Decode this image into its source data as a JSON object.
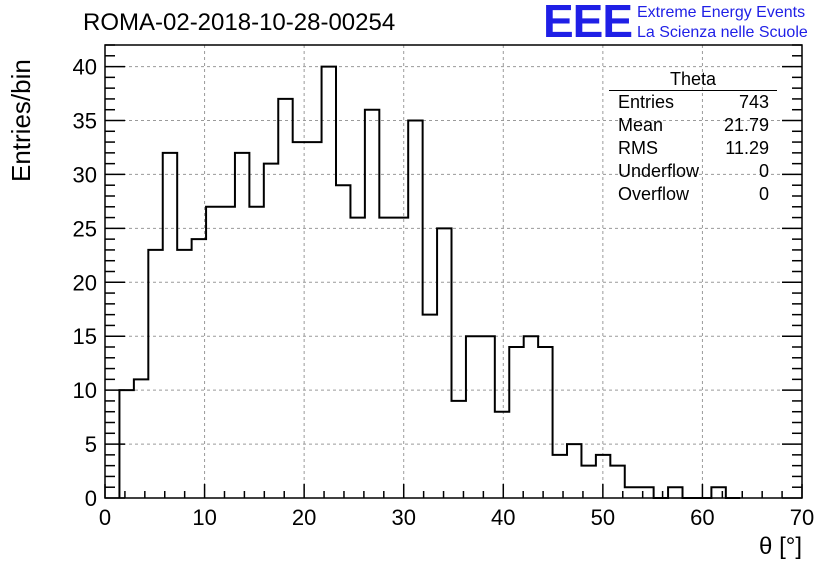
{
  "header": {
    "title": "ROMA-02-2018-10-28-00254",
    "logo_text": "EEE",
    "logo_line1": "Extreme Energy Events",
    "logo_line2": "La Scienza nelle Scuole",
    "logo_color": "#1f1fe6"
  },
  "stats": {
    "name": "Theta",
    "rows": [
      {
        "label": "Entries",
        "value": "743"
      },
      {
        "label": "Mean",
        "value": "21.79"
      },
      {
        "label": "RMS",
        "value": "11.29"
      },
      {
        "label": "Underflow",
        "value": "0"
      },
      {
        "label": "Overflow",
        "value": "0"
      }
    ]
  },
  "chart_data": {
    "type": "bar",
    "style": "step-histogram",
    "xlabel": "θ [°]",
    "ylabel": "Entries/bin",
    "xlim": [
      0,
      70
    ],
    "ylim": [
      0,
      42
    ],
    "grid": true,
    "bin_width": 1.45,
    "bin_start": 1.45,
    "xticks": [
      0,
      10,
      20,
      30,
      40,
      50,
      60,
      70
    ],
    "yticks": [
      0,
      5,
      10,
      15,
      20,
      25,
      30,
      35,
      40
    ],
    "values": [
      10,
      11,
      23,
      32,
      23,
      24,
      27,
      27,
      32,
      27,
      31,
      37,
      33,
      33,
      40,
      29,
      26,
      36,
      26,
      26,
      35,
      17,
      25,
      9,
      15,
      15,
      8,
      14,
      15,
      14,
      4,
      5,
      3,
      4,
      3,
      1,
      1,
      0,
      1,
      0,
      0,
      1,
      0
    ]
  }
}
